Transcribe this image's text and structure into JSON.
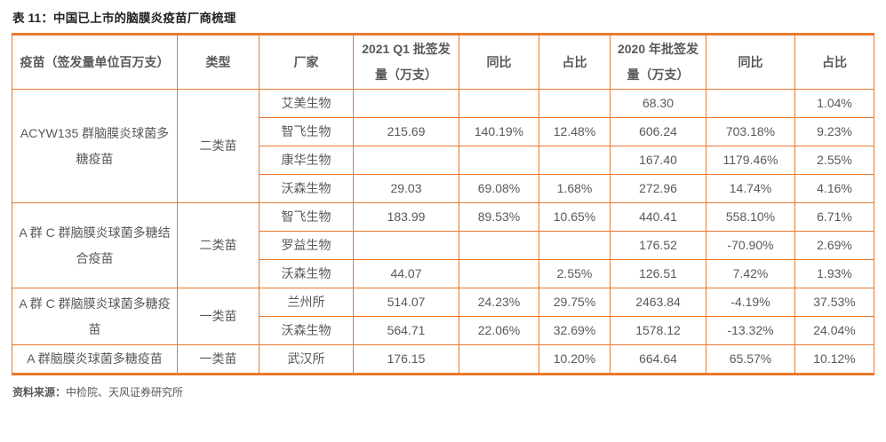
{
  "title": "表 11：中国已上市的脑膜炎疫苗厂商梳理",
  "colors": {
    "accent_border": "#E8792C",
    "body_text": "#595959",
    "title_text": "#212121"
  },
  "table": {
    "headers": [
      "疫苗（签发量单位百万支）",
      "类型",
      "厂家",
      "2021 Q1 批签发量（万支）",
      "同比",
      "占比",
      "2020 年批签发量（万支）",
      "同比",
      "占比"
    ],
    "groups": [
      {
        "vaccine": "ACYW135 群脑膜炎球菌多糖疫苗",
        "type": "二类苗",
        "rows": [
          {
            "manufacturer": "艾美生物",
            "values": [
              "",
              "",
              "",
              "68.30",
              "",
              "1.04%"
            ]
          },
          {
            "manufacturer": "智飞生物",
            "values": [
              "215.69",
              "140.19%",
              "12.48%",
              "606.24",
              "703.18%",
              "9.23%"
            ]
          },
          {
            "manufacturer": "康华生物",
            "values": [
              "",
              "",
              "",
              "167.40",
              "1179.46%",
              "2.55%"
            ]
          },
          {
            "manufacturer": "沃森生物",
            "values": [
              "29.03",
              "69.08%",
              "1.68%",
              "272.96",
              "14.74%",
              "4.16%"
            ]
          }
        ]
      },
      {
        "vaccine": "A 群 C 群脑膜炎球菌多糖结合疫苗",
        "type": "二类苗",
        "rows": [
          {
            "manufacturer": "智飞生物",
            "values": [
              "183.99",
              "89.53%",
              "10.65%",
              "440.41",
              "558.10%",
              "6.71%"
            ]
          },
          {
            "manufacturer": "罗益生物",
            "values": [
              "",
              "",
              "",
              "176.52",
              "-70.90%",
              "2.69%"
            ]
          },
          {
            "manufacturer": "沃森生物",
            "values": [
              "44.07",
              "",
              "2.55%",
              "126.51",
              "7.42%",
              "1.93%"
            ]
          }
        ]
      },
      {
        "vaccine": "A 群 C 群脑膜炎球菌多糖疫苗",
        "type": "一类苗",
        "rows": [
          {
            "manufacturer": "兰州所",
            "values": [
              "514.07",
              "24.23%",
              "29.75%",
              "2463.84",
              "-4.19%",
              "37.53%"
            ]
          },
          {
            "manufacturer": "沃森生物",
            "values": [
              "564.71",
              "22.06%",
              "32.69%",
              "1578.12",
              "-13.32%",
              "24.04%"
            ]
          }
        ]
      },
      {
        "vaccine": "A 群脑膜炎球菌多糖疫苗",
        "type": "一类苗",
        "rows": [
          {
            "manufacturer": "武汉所",
            "values": [
              "176.15",
              "",
              "10.20%",
              "664.64",
              "65.57%",
              "10.12%"
            ]
          }
        ]
      }
    ]
  },
  "footer": {
    "source_label": "资料来源：",
    "source_text": "中检院、天风证券研究所"
  }
}
